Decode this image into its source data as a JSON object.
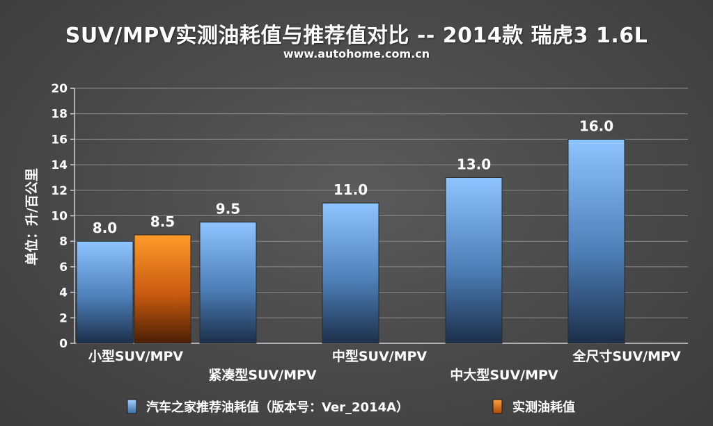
{
  "chart_data": {
    "type": "bar",
    "title": "SUV/MPV实测油耗值与推荐值对比 -- 2014款 瑞虎3 1.6L",
    "subtitle": "www.autohome.com.cn",
    "ylabel": "单位：升/百公里",
    "ylim": [
      0,
      20
    ],
    "yticks": [
      0,
      2,
      4,
      6,
      8,
      10,
      12,
      14,
      16,
      18,
      20
    ],
    "grid": true,
    "legend_position": "bottom",
    "categories": [
      "小型SUV/MPV",
      "紧凑型SUV/MPV",
      "中型SUV/MPV",
      "中大型SUV/MPV",
      "全尺寸SUV/MPV"
    ],
    "series": [
      {
        "name": "汽车之家推荐油耗值（版本号：Ver_2014A）",
        "color": "#6aaaf0",
        "values": [
          8.0,
          9.5,
          11.0,
          13.0,
          16.0
        ]
      },
      {
        "name": "实测油耗值",
        "color": "#f07a10",
        "values": [
          8.5,
          null,
          null,
          null,
          null
        ]
      }
    ],
    "data_labels": [
      "8.0",
      "8.5",
      "9.5",
      "11.0",
      "13.0",
      "16.0"
    ]
  }
}
